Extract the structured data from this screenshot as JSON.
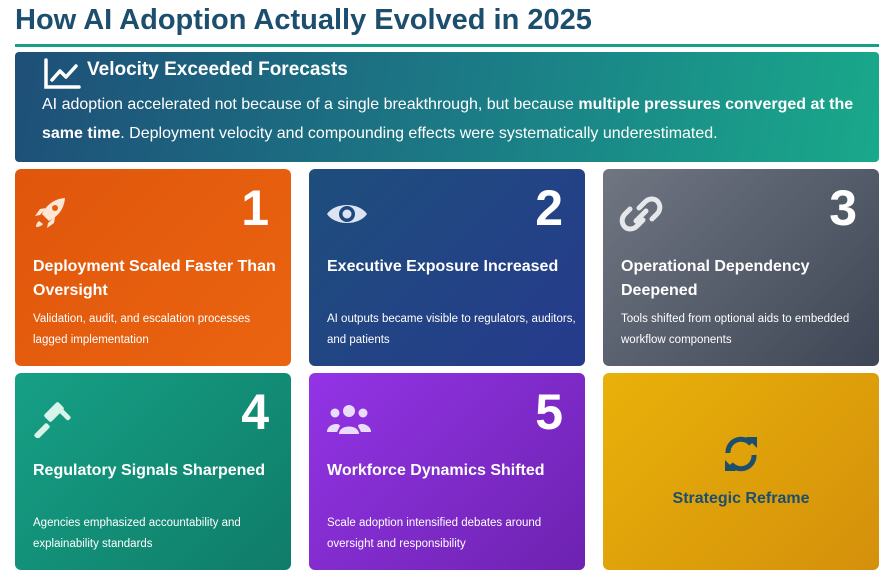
{
  "header": {
    "title": "How AI Adoption Actually Evolved in 2025"
  },
  "banner": {
    "heading": "Velocity Exceeded Forecasts",
    "text_before": "AI adoption accelerated not because of a single breakthrough, but because",
    "text_bold": "multiple pressures converged at the same time",
    "text_after": ". Deployment velocity and compounding effects were systematically underestimated."
  },
  "cards": [
    {
      "number": 1,
      "title": "Deployment Scaled Faster Than Oversight",
      "description": "Validation, audit, and escalation processes lagged implementation"
    },
    {
      "number": 2,
      "title": "Executive Exposure Increased",
      "description": "AI outputs became visible to regulators, auditors, and patients"
    },
    {
      "number": 3,
      "title": "Operational Dependency Deepened",
      "description": "Tools shifted from optional aids to embedded workflow components"
    },
    {
      "number": 4,
      "title": "Regulatory Signals Sharpened",
      "description": "Agencies emphasized accountability and explainability standards"
    },
    {
      "number": 5,
      "title": "Workforce Dynamics Shifted",
      "description": "Scale adoption intensified debates around oversight and responsibility"
    }
  ],
  "reframe": {
    "label": "Strategic Reframe"
  }
}
